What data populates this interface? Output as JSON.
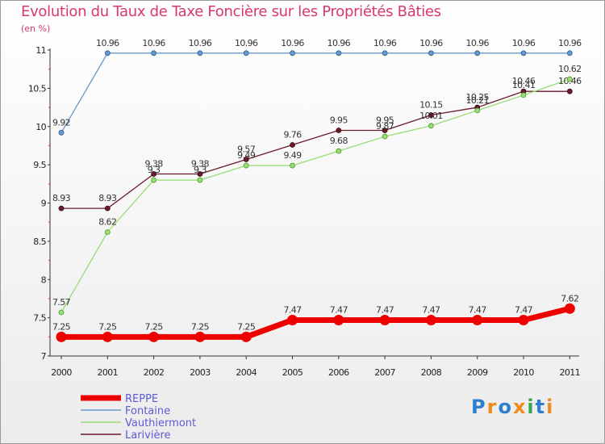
{
  "chart_data": {
    "type": "line",
    "title": "Evolution du Taux de Taxe Foncière sur les Propriétés Bâties",
    "subtitle": "(en %)",
    "categories": [
      "2000",
      "2001",
      "2002",
      "2003",
      "2004",
      "2005",
      "2006",
      "2007",
      "2008",
      "2009",
      "2010",
      "2011"
    ],
    "ylim": [
      7,
      11
    ],
    "yticks": [
      7,
      7.5,
      8,
      8.5,
      9,
      9.5,
      10,
      10.5,
      11
    ],
    "ytick_labels": [
      "7",
      "7.5",
      "8",
      "8.5",
      "9",
      "9.5",
      "10",
      "10.5",
      "11"
    ],
    "series": [
      {
        "name": "Larivière",
        "color": "#6b1a2a",
        "values": [
          8.93,
          8.93,
          9.38,
          9.38,
          9.57,
          9.76,
          9.95,
          9.95,
          10.15,
          10.25,
          10.46,
          10.46
        ],
        "labels": [
          "8.93",
          "8.93",
          "9.38",
          "9.38",
          "9.57",
          "9.76",
          "9.95",
          "9.95",
          "10.15",
          "10.25",
          "10.46",
          "10.46"
        ]
      },
      {
        "name": "Vauthiermont",
        "color": "#99dd77",
        "values": [
          7.57,
          8.62,
          9.3,
          9.3,
          9.49,
          9.49,
          9.68,
          9.87,
          10.01,
          10.21,
          10.41,
          10.62
        ],
        "labels": [
          "7.57",
          "8.62",
          "9.3",
          "9.3",
          "9.49",
          "9.49",
          "9.68",
          "9.87",
          "10.01",
          "10.21",
          "10.41",
          "10.62"
        ]
      },
      {
        "name": "Fontaine",
        "color": "#6699cc",
        "values": [
          9.92,
          10.96,
          10.96,
          10.96,
          10.96,
          10.96,
          10.96,
          10.96,
          10.96,
          10.96,
          10.96,
          10.96
        ],
        "labels": [
          "9.92",
          "10.96",
          "10.96",
          "10.96",
          "10.96",
          "10.96",
          "10.96",
          "10.96",
          "10.96",
          "10.96",
          "10.96",
          "10.96"
        ]
      },
      {
        "name": "REPPE",
        "color": "#ee0000",
        "values": [
          7.25,
          7.25,
          7.25,
          7.25,
          7.25,
          7.47,
          7.47,
          7.47,
          7.47,
          7.47,
          7.47,
          7.62
        ],
        "labels": [
          "7.25",
          "7.25",
          "7.25",
          "7.25",
          "7.25",
          "7.47",
          "7.47",
          "7.47",
          "7.47",
          "7.47",
          "7.47",
          "7.62"
        ]
      }
    ],
    "legend": [
      "REPPE",
      "Fontaine",
      "Vauthiermont",
      "Larivière"
    ],
    "legend_position": "bottom-left"
  },
  "logo": {
    "letters": [
      "P",
      "r",
      "o",
      "x",
      "i",
      "t",
      "i"
    ],
    "colors": [
      "#2f7fd0",
      "#f08a1c",
      "#2f7fd0",
      "#f08a1c",
      "#3aa84a",
      "#2f7fd0",
      "#f08a1c"
    ]
  }
}
